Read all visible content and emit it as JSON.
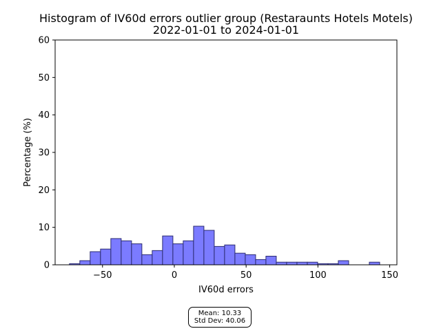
{
  "chart_data": {
    "type": "histogram",
    "title_line1": "Histogram of IV60d errors outlier group (Restaraunts Hotels Motels)",
    "title_line2": "2022-01-01 to 2024-01-01",
    "xlabel": "IV60d errors",
    "ylabel": "Percentage (%)",
    "xlim": [
      -83,
      155
    ],
    "ylim": [
      0,
      60
    ],
    "xticks": [
      -50,
      0,
      50,
      100,
      150
    ],
    "yticks": [
      0,
      10,
      20,
      30,
      40,
      50,
      60
    ],
    "grid": false,
    "bar_color": "#7b7bff",
    "bar_edge_color": "#2b2b6f",
    "bin_width": 7.2,
    "bins": [
      {
        "x0": -73.0,
        "value": 0.3
      },
      {
        "x0": -65.8,
        "value": 1.1
      },
      {
        "x0": -58.6,
        "value": 3.5
      },
      {
        "x0": -51.4,
        "value": 4.2
      },
      {
        "x0": -44.2,
        "value": 7.0
      },
      {
        "x0": -37.0,
        "value": 6.4
      },
      {
        "x0": -29.8,
        "value": 5.6
      },
      {
        "x0": -22.6,
        "value": 2.7
      },
      {
        "x0": -15.4,
        "value": 3.8
      },
      {
        "x0": -8.2,
        "value": 7.7
      },
      {
        "x0": -1.0,
        "value": 5.6
      },
      {
        "x0": 6.2,
        "value": 6.4
      },
      {
        "x0": 13.4,
        "value": 10.3
      },
      {
        "x0": 20.6,
        "value": 9.2
      },
      {
        "x0": 27.8,
        "value": 4.9
      },
      {
        "x0": 35.0,
        "value": 5.3
      },
      {
        "x0": 42.2,
        "value": 3.1
      },
      {
        "x0": 49.4,
        "value": 2.7
      },
      {
        "x0": 56.6,
        "value": 1.4
      },
      {
        "x0": 63.8,
        "value": 2.3
      },
      {
        "x0": 71.0,
        "value": 0.7
      },
      {
        "x0": 78.2,
        "value": 0.7
      },
      {
        "x0": 85.4,
        "value": 0.7
      },
      {
        "x0": 92.6,
        "value": 0.7
      },
      {
        "x0": 99.8,
        "value": 0.3
      },
      {
        "x0": 107.0,
        "value": 0.3
      },
      {
        "x0": 114.2,
        "value": 1.1
      },
      {
        "x0": 121.4,
        "value": 0.0
      },
      {
        "x0": 128.6,
        "value": 0.0
      },
      {
        "x0": 135.8,
        "value": 0.7
      }
    ]
  },
  "stats": {
    "mean_text": "Mean: 10.33",
    "std_text": "Std Dev: 40.06"
  }
}
